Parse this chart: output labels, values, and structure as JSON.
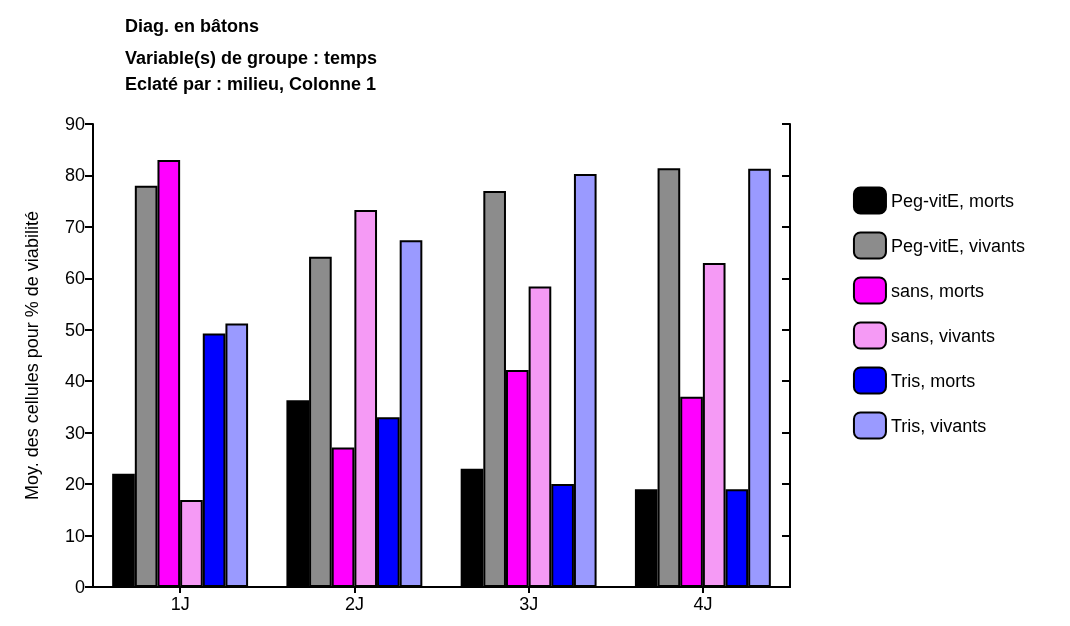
{
  "chart_data": {
    "type": "bar",
    "title": "Diag. en bâtons",
    "subtitle": "Variable(s) de groupe : temps\nEclaté par : milieu, Colonne 1",
    "ylabel": "Moy. des cellules pour % de viabilité",
    "categories": [
      "1J",
      "2J",
      "3J",
      "4J"
    ],
    "series": [
      {
        "name": "Peg-vitE, morts",
        "color": "#000000",
        "values": [
          22,
          36.3,
          23,
          19
        ]
      },
      {
        "name": "Peg-vitE, vivants",
        "color": "#8c8c8c",
        "values": [
          78,
          64.2,
          77,
          81.4
        ]
      },
      {
        "name": "sans, morts",
        "color": "#ff00ff",
        "values": [
          83,
          27.1,
          42.2,
          37
        ]
      },
      {
        "name": "sans, vivants",
        "color": "#f59af5",
        "values": [
          16.9,
          73.3,
          58.4,
          63
        ]
      },
      {
        "name": "Tris, morts",
        "color": "#0000ff",
        "values": [
          49.3,
          33,
          20,
          19
        ]
      },
      {
        "name": "Tris, vivants",
        "color": "#9a9aff",
        "values": [
          51.2,
          67.4,
          80.3,
          81.3
        ]
      }
    ],
    "ylim": [
      0,
      90
    ],
    "yticks": [
      0,
      10,
      20,
      30,
      40,
      50,
      60,
      70,
      80,
      90
    ],
    "grid": false,
    "legend": "right"
  }
}
